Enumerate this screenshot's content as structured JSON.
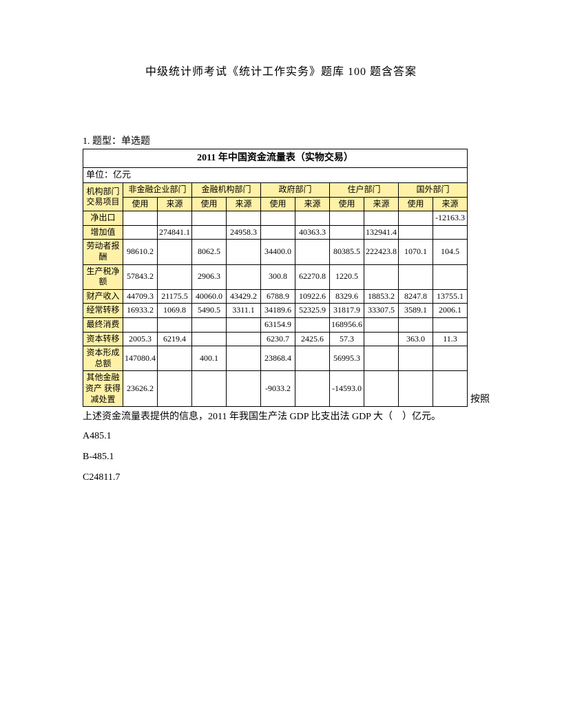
{
  "doc_title": "中级统计师考试《统计工作实务》题库 100 题含答案",
  "q_meta": "1. 题型：单选题",
  "table_header_title": "2011 年中国资金流量表（实物交易）",
  "unit_label": "单位：亿元",
  "col_rowhead": "机构部门\n交易项目",
  "sectors": [
    "非金融企业部门",
    "金融机构部门",
    "政府部门",
    "住户部门",
    "国外部门"
  ],
  "subcols": [
    "使用",
    "来源"
  ],
  "row_labels": [
    "净出口",
    "增加值",
    "劳动者报酬",
    "生产税净额",
    "财产收入",
    "经常转移",
    "最终消费",
    "资本转移",
    "资本形成总额",
    "其他金融资产\n获得减处置"
  ],
  "cells": {
    "r0": [
      "",
      "",
      "",
      "",
      "",
      "",
      "",
      "",
      "",
      "-12163.3"
    ],
    "r1": [
      "",
      "274841.1",
      "",
      "24958.3",
      "",
      "40363.3",
      "",
      "132941.4",
      "",
      ""
    ],
    "r2": [
      "98610.2",
      "",
      "8062.5",
      "",
      "34400.0",
      "",
      "80385.5",
      "222423.8",
      "1070.1",
      "104.5"
    ],
    "r3": [
      "57843.2",
      "",
      "2906.3",
      "",
      "300.8",
      "62270.8",
      "1220.5",
      "",
      "",
      ""
    ],
    "r4": [
      "44709.3",
      "21175.5",
      "40060.0",
      "43429.2",
      "6788.9",
      "10922.6",
      "8329.6",
      "18853.2",
      "8247.8",
      "13755.1"
    ],
    "r5": [
      "16933.2",
      "1069.8",
      "5490.5",
      "3311.1",
      "34189.6",
      "52325.9",
      "31817.9",
      "33307.5",
      "3589.1",
      "2006.1"
    ],
    "r6": [
      "",
      "",
      "",
      "",
      "63154.9",
      "",
      "168956.6",
      "",
      "",
      ""
    ],
    "r7": [
      "2005.3",
      "6219.4",
      "",
      "",
      "6230.7",
      "2425.6",
      "57.3",
      "",
      "363.0",
      "11.3"
    ],
    "r8": [
      "147080.4",
      "",
      "400.1",
      "",
      "23868.4",
      "",
      "56995.3",
      "",
      "",
      ""
    ],
    "r9": [
      "23626.2",
      "",
      "",
      "",
      "-9033.2",
      "",
      "-14593.0",
      "",
      "",
      ""
    ]
  },
  "after_table_inline": "按照",
  "question_text": "上述资金流量表提供的信息，2011 年我国生产法 GDP 比支出法 GDP 大（　）亿元。",
  "options": {
    "A": "A485.1",
    "B": "B-485.1",
    "C": "C24811.7"
  },
  "colors": {
    "highlight": "#fff2a8",
    "border": "#000000",
    "text": "#000000",
    "bg": "#ffffff"
  }
}
